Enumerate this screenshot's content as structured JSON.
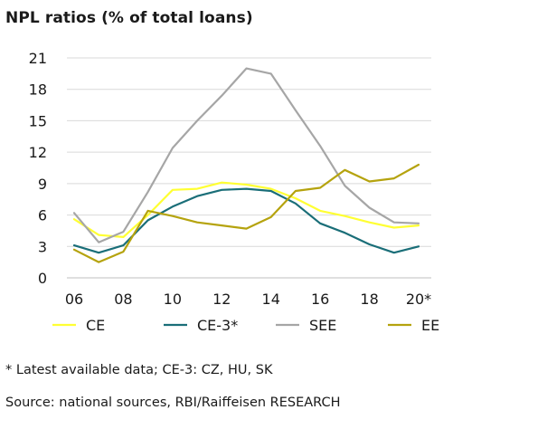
{
  "chart_title": "NPL ratios (% of total loans)",
  "footnote": "* Latest available data; CE-3: CZ, HU, SK",
  "source": "Source: national sources, RBI/Raiffeisen RESEARCH",
  "chart_data": {
    "type": "line",
    "title": "NPL ratios (% of total loans)",
    "xlabel": "",
    "ylabel": "",
    "x": [
      2006,
      2007,
      2008,
      2009,
      2010,
      2011,
      2012,
      2013,
      2014,
      2015,
      2016,
      2017,
      2018,
      2019,
      2020
    ],
    "x_tick_labels": [
      "06",
      "08",
      "10",
      "12",
      "14",
      "16",
      "18",
      "20*"
    ],
    "x_tick_values": [
      2006,
      2008,
      2010,
      2012,
      2014,
      2016,
      2018,
      2020
    ],
    "y_ticks": [
      0,
      3,
      6,
      9,
      12,
      15,
      18,
      21
    ],
    "ylim": [
      0,
      21
    ],
    "xlim": [
      2006,
      2020
    ],
    "grid": true,
    "legend_position": "bottom",
    "series": [
      {
        "name": "CE",
        "color": "#ffff33",
        "values": [
          5.6,
          4.1,
          3.9,
          6.0,
          8.4,
          8.5,
          9.1,
          8.9,
          8.5,
          7.6,
          6.4,
          5.9,
          5.3,
          4.8,
          5.0
        ]
      },
      {
        "name": "CE-3*",
        "color": "#1a6e78",
        "values": [
          3.1,
          2.4,
          3.1,
          5.5,
          6.8,
          7.8,
          8.4,
          8.5,
          8.3,
          7.1,
          5.2,
          4.3,
          3.2,
          2.4,
          3.0
        ]
      },
      {
        "name": "SEE",
        "color": "#a6a6a6",
        "values": [
          6.2,
          3.4,
          4.4,
          8.2,
          12.4,
          15.0,
          17.4,
          20.0,
          19.5,
          16.0,
          12.6,
          8.8,
          6.7,
          5.3,
          5.2
        ]
      },
      {
        "name": "EE",
        "color": "#b5a30e",
        "values": [
          2.7,
          1.5,
          2.5,
          6.4,
          5.9,
          5.3,
          5.0,
          4.7,
          5.8,
          8.3,
          8.6,
          10.3,
          9.2,
          9.5,
          10.8
        ]
      }
    ]
  }
}
